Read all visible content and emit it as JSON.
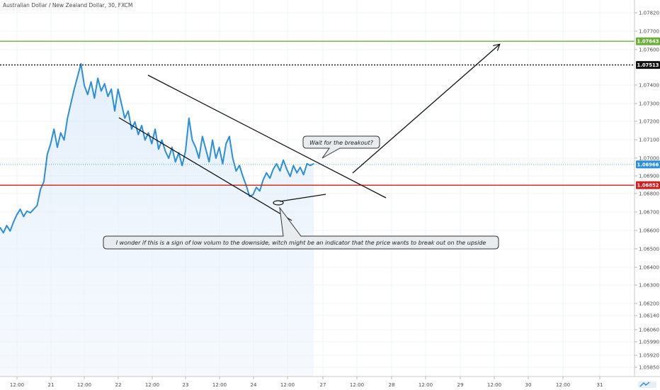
{
  "chart_data": {
    "type": "line",
    "title": "Australian Dollar / New Zealand Dollar, 30, FXCM",
    "y_ticks": [
      "1.07820",
      "1.07700",
      "1.07600",
      "1.07400",
      "1.07300",
      "1.07200",
      "1.07100",
      "1.07000",
      "1.06900",
      "1.06800",
      "1.06700",
      "1.06600",
      "1.06500",
      "1.06400",
      "1.06300",
      "1.06200",
      "1.06140",
      "1.06060",
      "1.05990",
      "1.05920",
      "1.05850"
    ],
    "x_ticks": [
      "12:00",
      "21",
      "12:00",
      "22",
      "12:00",
      "23",
      "12:00",
      "24",
      "12:00",
      "27",
      "12:00",
      "28",
      "12:00",
      "29",
      "12:00",
      "30",
      "12:00",
      "31"
    ],
    "ylim": [
      1.058,
      1.0787
    ],
    "price_tags": [
      {
        "value": "1.07643",
        "color": "#6bae3a",
        "text_color": "#ffffff"
      },
      {
        "value": "1.07513",
        "color": "#111111",
        "text_color": "#ffffff"
      },
      {
        "value": "1.06966",
        "color": "#2a8fd8",
        "text_color": "#ffffff"
      },
      {
        "value": "1.06852",
        "color": "#d11c1c",
        "text_color": "#ffffff"
      }
    ],
    "series": [
      {
        "color": "#2a8fd8",
        "x": [
          0,
          1,
          2,
          3,
          4,
          5,
          6,
          7,
          8,
          9,
          10,
          11,
          12,
          13,
          14,
          15,
          16,
          17,
          18,
          19,
          20,
          21,
          22,
          23,
          24,
          25,
          26,
          27,
          28,
          29,
          30,
          31,
          32,
          33,
          34,
          35,
          36,
          37,
          38,
          39,
          40,
          41,
          42,
          43,
          44,
          45,
          46,
          47,
          48,
          49,
          50,
          51,
          52,
          53,
          54,
          55,
          56,
          57,
          58,
          59,
          60,
          61,
          62,
          63,
          64,
          65,
          66,
          67,
          68,
          69,
          70,
          71,
          72,
          73,
          74,
          75,
          76,
          77,
          78,
          79,
          80,
          81,
          82,
          83,
          84,
          85,
          86,
          87,
          88,
          89,
          90,
          91,
          92,
          93
        ],
        "values": [
          1.0662,
          1.0659,
          1.0663,
          1.066,
          1.0665,
          1.0669,
          1.0672,
          1.0668,
          1.0671,
          1.067,
          1.0672,
          1.0674,
          1.0683,
          1.0687,
          1.0702,
          1.0708,
          1.0716,
          1.0706,
          1.0714,
          1.071,
          1.0722,
          1.073,
          1.0738,
          1.0745,
          1.0752,
          1.074,
          1.0735,
          1.0742,
          1.0733,
          1.0744,
          1.0737,
          1.0741,
          1.0734,
          1.0738,
          1.0726,
          1.0738,
          1.073,
          1.0722,
          1.0726,
          1.0716,
          1.072,
          1.0713,
          1.0718,
          1.071,
          1.0714,
          1.0708,
          1.0716,
          1.0705,
          1.071,
          1.0704,
          1.07,
          1.0706,
          1.0698,
          1.0703,
          1.0696,
          1.0704,
          1.0722,
          1.071,
          1.0706,
          1.07,
          1.0712,
          1.0705,
          1.0698,
          1.071,
          1.07,
          1.0706,
          1.0697,
          1.0708,
          1.0712,
          1.07,
          1.0693,
          1.0696,
          1.069,
          1.0685,
          1.0679,
          1.068,
          1.0684,
          1.0682,
          1.0688,
          1.0692,
          1.0689,
          1.0694,
          1.0697,
          1.0693,
          1.0699,
          1.0694,
          1.069,
          1.0696,
          1.0692,
          1.0695,
          1.0691,
          1.0697,
          1.0696,
          1.0697
        ]
      }
    ],
    "annotations": [
      {
        "type": "callout",
        "text": "Wait for the breakout?"
      },
      {
        "type": "callout",
        "text": "I wonder if this is a sign of low volum to the downside, witch might be an indicator that the price wants to break out on the upside"
      }
    ],
    "grid": true
  }
}
